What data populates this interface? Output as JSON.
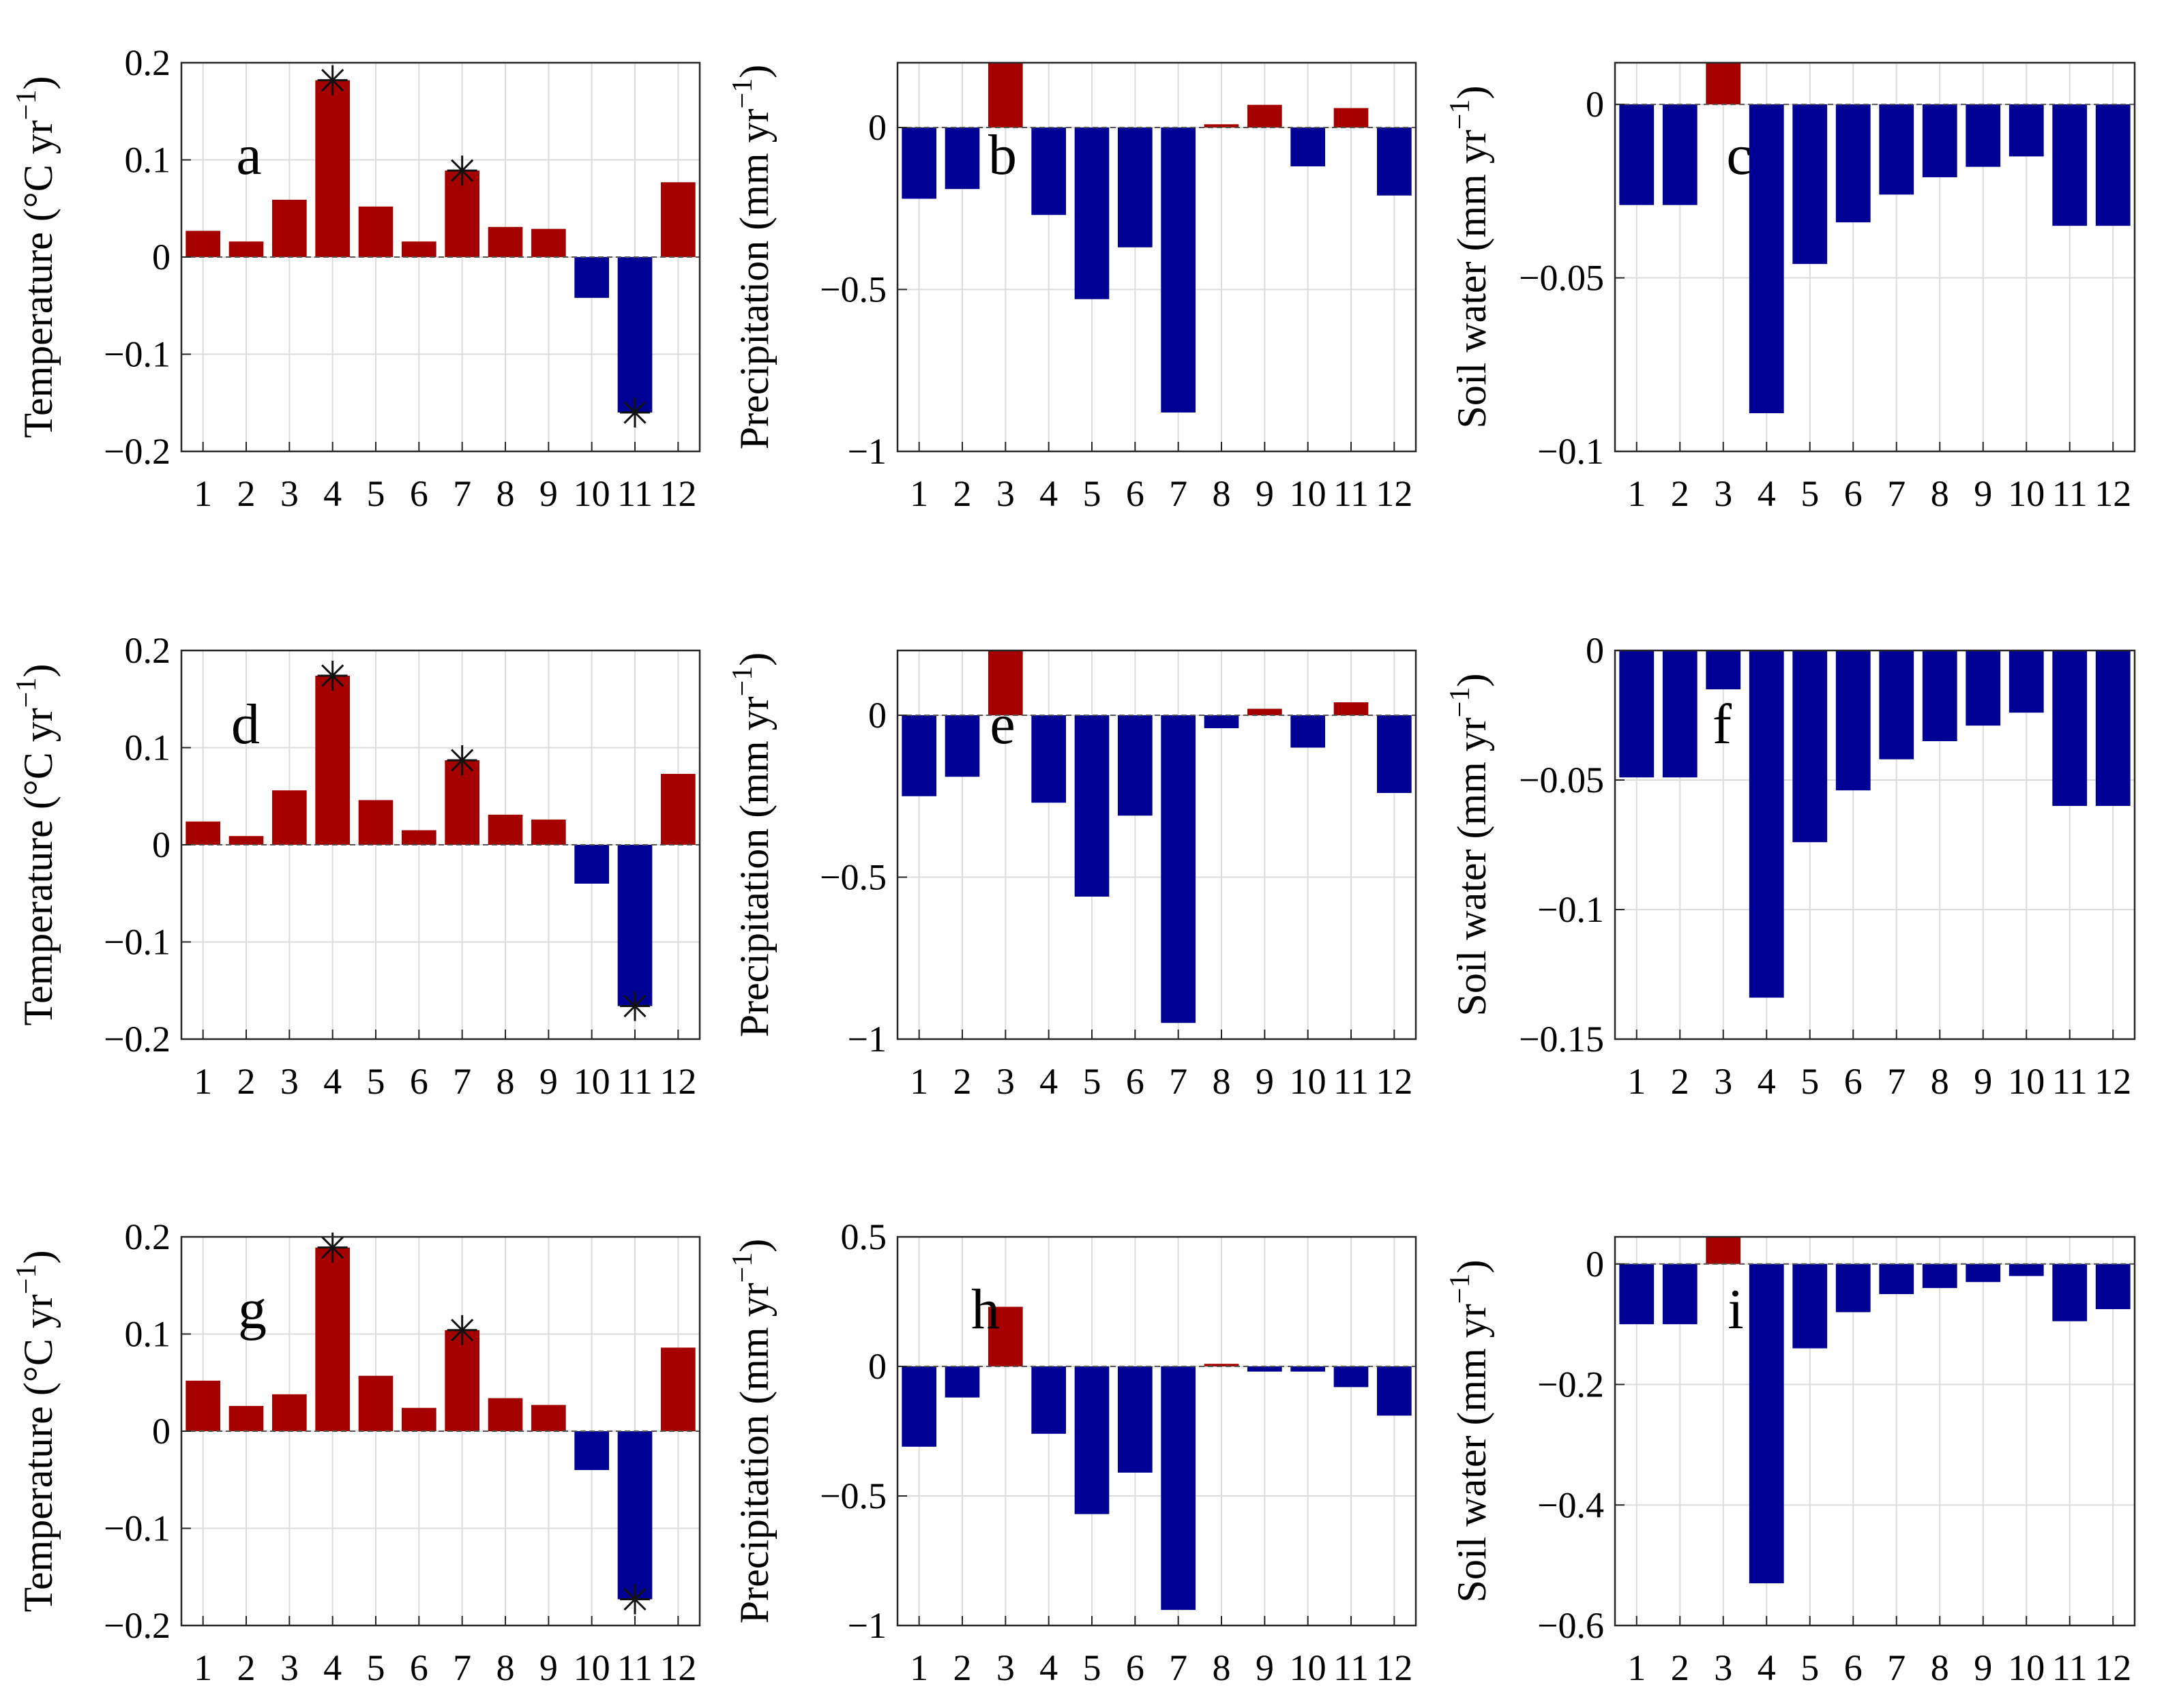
{
  "colors": {
    "positive": "#A50000",
    "negative": "#000094",
    "grid": "#dcdcdc",
    "axis": "#262626"
  },
  "chart_data": [
    {
      "type": "bar",
      "panel": "a",
      "ylabel": "Temperature (°C yr",
      "ylabel_sup": "−1",
      "ylabel_close": ")",
      "categories": [
        "1",
        "2",
        "3",
        "4",
        "5",
        "6",
        "7",
        "8",
        "9",
        "10",
        "11",
        "12"
      ],
      "values": [
        0.027,
        0.016,
        0.059,
        0.182,
        0.052,
        0.016,
        0.089,
        0.031,
        0.029,
        -0.042,
        -0.16,
        0.077
      ],
      "ylim": [
        -0.2,
        0.2
      ],
      "yticks": [
        -0.2,
        -0.1,
        0,
        0.1,
        0.2
      ],
      "ytick_labels": [
        "−0.2",
        "−0.1",
        "0",
        "0.1",
        "0.2"
      ],
      "significant": [
        4,
        7,
        11
      ]
    },
    {
      "type": "bar",
      "panel": "b",
      "ylabel": "Precipitation (mm yr",
      "ylabel_sup": "−1",
      "ylabel_close": ")",
      "categories": [
        "1",
        "2",
        "3",
        "4",
        "5",
        "6",
        "7",
        "8",
        "9",
        "10",
        "11",
        "12"
      ],
      "values": [
        -0.22,
        -0.19,
        0.25,
        -0.27,
        -0.53,
        -0.37,
        -0.88,
        0.01,
        0.07,
        -0.12,
        0.06,
        -0.21
      ],
      "ylim": [
        -1,
        0.2
      ],
      "yticks": [
        -1,
        -0.5,
        0
      ],
      "ytick_labels": [
        "−1",
        "−0.5",
        "0"
      ],
      "significant": []
    },
    {
      "type": "bar",
      "panel": "c",
      "ylabel": "Soil water (mm yr",
      "ylabel_sup": "−1",
      "ylabel_close": ")",
      "categories": [
        "1",
        "2",
        "3",
        "4",
        "5",
        "6",
        "7",
        "8",
        "9",
        "10",
        "11",
        "12"
      ],
      "values": [
        -0.029,
        -0.029,
        0.015,
        -0.089,
        -0.046,
        -0.034,
        -0.026,
        -0.021,
        -0.018,
        -0.015,
        -0.035,
        -0.035
      ],
      "ylim": [
        -0.1,
        0.012
      ],
      "yticks": [
        -0.1,
        -0.05,
        0
      ],
      "ytick_labels": [
        "−0.1",
        "−0.05",
        "0"
      ],
      "significant": []
    },
    {
      "type": "bar",
      "panel": "d",
      "ylabel": "Temperature (°C yr",
      "ylabel_sup": "−1",
      "ylabel_close": ")",
      "categories": [
        "1",
        "2",
        "3",
        "4",
        "5",
        "6",
        "7",
        "8",
        "9",
        "10",
        "11",
        "12"
      ],
      "values": [
        0.024,
        0.009,
        0.056,
        0.174,
        0.046,
        0.015,
        0.087,
        0.031,
        0.026,
        -0.04,
        -0.166,
        0.073
      ],
      "ylim": [
        -0.2,
        0.2
      ],
      "yticks": [
        -0.2,
        -0.1,
        0,
        0.1,
        0.2
      ],
      "ytick_labels": [
        "−0.2",
        "−0.1",
        "0",
        "0.1",
        "0.2"
      ],
      "significant": [
        4,
        7,
        11
      ]
    },
    {
      "type": "bar",
      "panel": "e",
      "ylabel": "Precipitation (mm yr",
      "ylabel_sup": "−1",
      "ylabel_close": ")",
      "categories": [
        "1",
        "2",
        "3",
        "4",
        "5",
        "6",
        "7",
        "8",
        "9",
        "10",
        "11",
        "12"
      ],
      "values": [
        -0.25,
        -0.19,
        0.25,
        -0.27,
        -0.56,
        -0.31,
        -0.95,
        -0.04,
        0.02,
        -0.1,
        0.04,
        -0.24
      ],
      "ylim": [
        -1,
        0.2
      ],
      "yticks": [
        -1,
        -0.5,
        0
      ],
      "ytick_labels": [
        "−1",
        "−0.5",
        "0"
      ],
      "significant": []
    },
    {
      "type": "bar",
      "panel": "f",
      "ylabel": "Soil water (mm yr",
      "ylabel_sup": "−1",
      "ylabel_close": ")",
      "categories": [
        "1",
        "2",
        "3",
        "4",
        "5",
        "6",
        "7",
        "8",
        "9",
        "10",
        "11",
        "12"
      ],
      "values": [
        -0.049,
        -0.049,
        -0.015,
        -0.134,
        -0.074,
        -0.054,
        -0.042,
        -0.035,
        -0.029,
        -0.024,
        -0.06,
        -0.06
      ],
      "ylim": [
        -0.15,
        0
      ],
      "yticks": [
        -0.15,
        -0.1,
        -0.05,
        0
      ],
      "ytick_labels": [
        "−0.15",
        "−0.1",
        "−0.05",
        "0"
      ],
      "significant": []
    },
    {
      "type": "bar",
      "panel": "g",
      "ylabel": "Temperature (°C yr",
      "ylabel_sup": "−1",
      "ylabel_close": ")",
      "categories": [
        "1",
        "2",
        "3",
        "4",
        "5",
        "6",
        "7",
        "8",
        "9",
        "10",
        "11",
        "12"
      ],
      "values": [
        0.052,
        0.026,
        0.038,
        0.189,
        0.057,
        0.024,
        0.104,
        0.034,
        0.027,
        -0.04,
        -0.173,
        0.086
      ],
      "ylim": [
        -0.2,
        0.2
      ],
      "yticks": [
        -0.2,
        -0.1,
        0,
        0.1,
        0.2
      ],
      "ytick_labels": [
        "−0.2",
        "−0.1",
        "0",
        "0.1",
        "0.2"
      ],
      "significant": [
        4,
        7,
        11
      ]
    },
    {
      "type": "bar",
      "panel": "h",
      "ylabel": "Precipitation (mm yr",
      "ylabel_sup": "−1",
      "ylabel_close": ")",
      "categories": [
        "1",
        "2",
        "3",
        "4",
        "5",
        "6",
        "7",
        "8",
        "9",
        "10",
        "11",
        "12"
      ],
      "values": [
        -0.31,
        -0.12,
        0.23,
        -0.26,
        -0.57,
        -0.41,
        -0.94,
        0.01,
        -0.02,
        -0.02,
        -0.08,
        -0.19
      ],
      "ylim": [
        -1,
        0.5
      ],
      "yticks": [
        -1,
        -0.5,
        0,
        0.5
      ],
      "ytick_labels": [
        "−1",
        "−0.5",
        "0",
        "0.5"
      ],
      "significant": []
    },
    {
      "type": "bar",
      "panel": "i",
      "ylabel": "Soil water (mm yr",
      "ylabel_sup": "−1",
      "ylabel_close": ")",
      "categories": [
        "1",
        "2",
        "3",
        "4",
        "5",
        "6",
        "7",
        "8",
        "9",
        "10",
        "11",
        "12"
      ],
      "values": [
        -0.1,
        -0.1,
        0.05,
        -0.53,
        -0.14,
        -0.08,
        -0.05,
        -0.04,
        -0.03,
        -0.02,
        -0.095,
        -0.075
      ],
      "ylim": [
        -0.6,
        0.045
      ],
      "yticks": [
        -0.6,
        -0.4,
        -0.2,
        0
      ],
      "ytick_labels": [
        "−0.6",
        "−0.4",
        "−0.2",
        "0"
      ],
      "significant": []
    }
  ]
}
